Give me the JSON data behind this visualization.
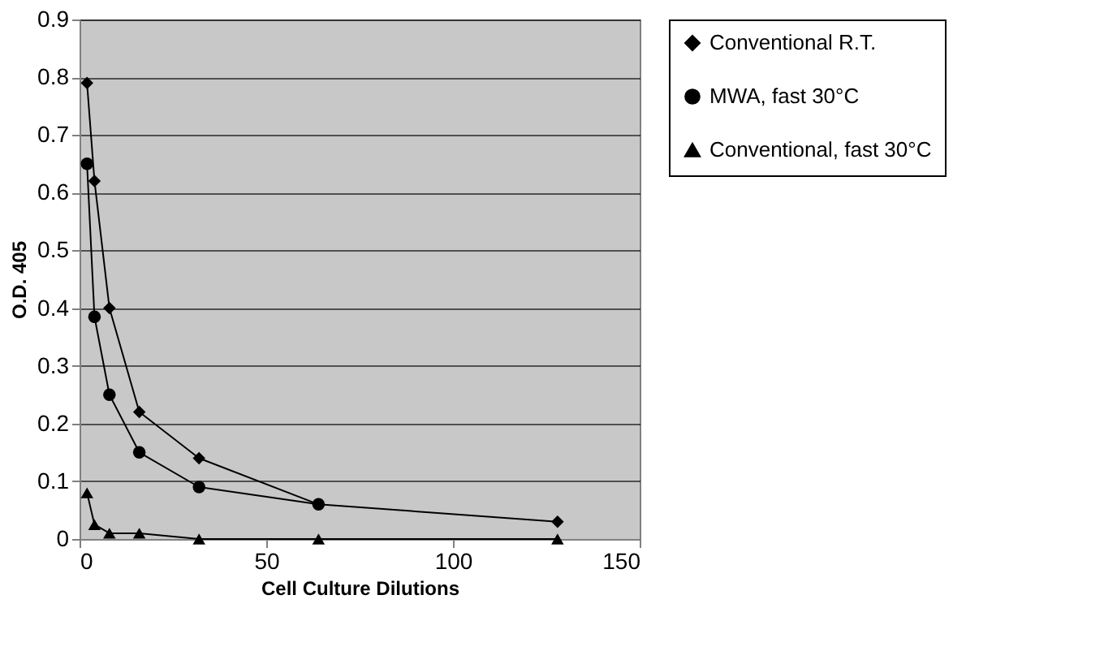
{
  "chart_data": {
    "type": "line",
    "xlabel": "Cell Culture Dilutions",
    "ylabel": "O.D. 405",
    "x": [
      2,
      4,
      8,
      16,
      32,
      64,
      128
    ],
    "series": [
      {
        "name": "Conventional R.T.",
        "color": "#000000",
        "marker": "diamond",
        "values": [
          0.79,
          0.62,
          0.4,
          0.22,
          0.14,
          0.06,
          0.03
        ]
      },
      {
        "name": "MWA, fast 30°C",
        "color": "#000000",
        "marker": "circle",
        "values": [
          0.65,
          0.385,
          0.25,
          0.15,
          0.09,
          0.06,
          null
        ]
      },
      {
        "name": "Conventional, fast 30°C",
        "color": "#000000",
        "marker": "triangle",
        "values": [
          0.08,
          0.025,
          0.01,
          0.01,
          0.0,
          0.0,
          0.0
        ]
      }
    ],
    "xlim": [
      0,
      150
    ],
    "xticks": [
      0,
      50,
      100,
      150
    ],
    "ylim": [
      0,
      0.9
    ],
    "yticks": [
      0,
      0.1,
      0.2,
      0.3,
      0.4,
      0.5,
      0.6,
      0.7,
      0.8,
      0.9
    ],
    "grid": "y",
    "legend": "right",
    "line_style": "solid"
  }
}
